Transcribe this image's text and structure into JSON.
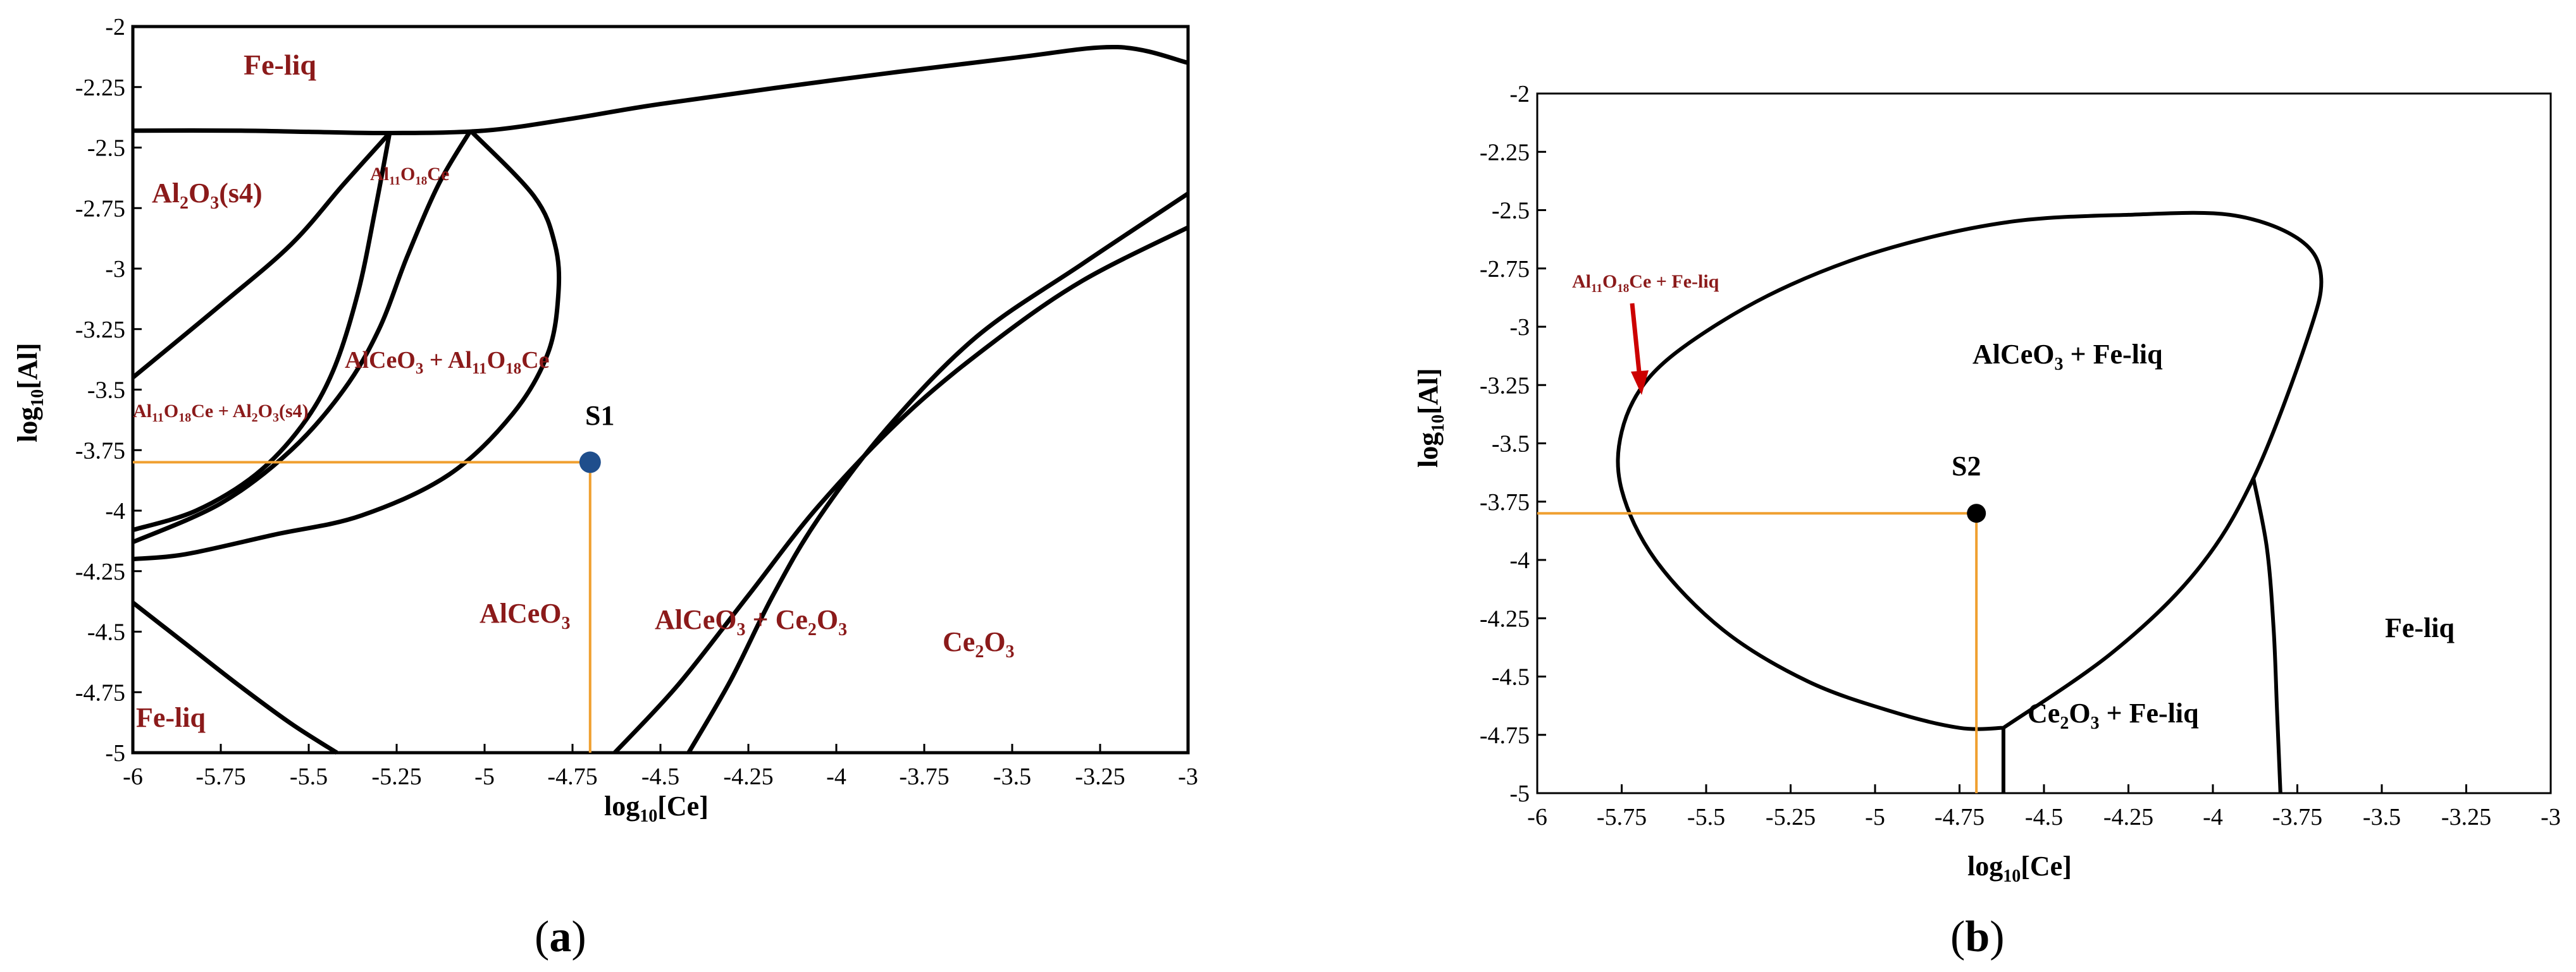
{
  "chart_data": [
    {
      "type": "line",
      "panel_label": "(a)",
      "xlabel": "log10[Ce]",
      "ylabel": "log10[Al]",
      "xlim": [
        -6,
        -3
      ],
      "ylim": [
        -5,
        -2
      ],
      "x_ticks": [
        "-6",
        "-5.75",
        "-5.5",
        "-5.25",
        "-5",
        "-4.75",
        "-4.5",
        "-4.25",
        "-4",
        "-3.75",
        "-3.5",
        "-3.25",
        "-3"
      ],
      "y_ticks": [
        "-2",
        "-2.25",
        "-2.5",
        "-2.75",
        "-3",
        "-3.25",
        "-3.5",
        "-3.75",
        "-4",
        "-4.25",
        "-4.5",
        "-4.75",
        "-5"
      ],
      "regions": [
        "Fe-liq",
        "Al2O3(s4)",
        "Al11O18Ce",
        "AlCeO3 + Al11O18Ce",
        "Al11O18Ce + Al2O3(s4)",
        "AlCeO3",
        "AlCeO3 + Ce2O3",
        "Ce2O3",
        "Fe-liq"
      ],
      "point": {
        "label": "S1",
        "x": -4.7,
        "y": -3.8,
        "color": "#1f4e8c"
      },
      "guide_color": "#f0a030",
      "boundaries": [
        {
          "x": [
            -6,
            -5.7,
            -5.5,
            -5.27,
            -5.0,
            -4.75,
            -4.5,
            -4.0,
            -3.5,
            -3.2,
            -3.0
          ],
          "y": [
            -2.43,
            -2.43,
            -2.435,
            -2.44,
            -2.43,
            -2.38,
            -2.32,
            -2.22,
            -2.13,
            -2.085,
            -2.15
          ]
        },
        {
          "x": [
            -5.27,
            -5.4,
            -5.55,
            -5.75,
            -6.0
          ],
          "y": [
            -2.44,
            -2.65,
            -2.9,
            -3.15,
            -3.45
          ]
        },
        {
          "x": [
            -5.27,
            -5.31,
            -5.36,
            -5.43,
            -5.52,
            -5.65,
            -5.82,
            -6.0
          ],
          "y": [
            -2.44,
            -2.75,
            -3.1,
            -3.42,
            -3.65,
            -3.85,
            -4.0,
            -4.08
          ]
        },
        {
          "x": [
            -5.04,
            -5.13,
            -5.22,
            -5.3,
            -5.4,
            -5.55,
            -5.75,
            -6.0
          ],
          "y": [
            -2.43,
            -2.65,
            -2.95,
            -3.25,
            -3.5,
            -3.75,
            -3.97,
            -4.13
          ]
        },
        {
          "x": [
            -5.04,
            -4.86,
            -4.8,
            -4.79,
            -4.82,
            -4.92,
            -5.1,
            -5.35,
            -5.6,
            -5.85,
            -6.0
          ],
          "y": [
            -2.43,
            -2.7,
            -2.9,
            -3.1,
            -3.35,
            -3.6,
            -3.85,
            -4.02,
            -4.1,
            -4.18,
            -4.2
          ]
        },
        {
          "x": [
            -6.0,
            -5.85,
            -5.7,
            -5.55,
            -5.42
          ],
          "y": [
            -4.38,
            -4.55,
            -4.72,
            -4.88,
            -5.0
          ]
        },
        {
          "x": [
            -4.63,
            -4.45,
            -4.25,
            -4.05,
            -3.8,
            -3.55,
            -3.3,
            -3.0
          ],
          "y": [
            -5.0,
            -4.72,
            -4.35,
            -3.98,
            -3.6,
            -3.3,
            -3.05,
            -2.83
          ]
        },
        {
          "x": [
            -4.42,
            -4.3,
            -4.18,
            -4.05,
            -3.85,
            -3.6,
            -3.3,
            -3.0
          ],
          "y": [
            -5.0,
            -4.7,
            -4.35,
            -4.03,
            -3.65,
            -3.28,
            -2.98,
            -2.69
          ]
        }
      ]
    },
    {
      "type": "line",
      "panel_label": "(b)",
      "xlabel": "log10[Ce]",
      "ylabel": "log10[Al]",
      "xlim": [
        -6,
        -3
      ],
      "ylim": [
        -5,
        -2
      ],
      "x_ticks": [
        "-6",
        "-5.75",
        "-5.5",
        "-5.25",
        "-5",
        "-4.75",
        "-4.5",
        "-4.25",
        "-4",
        "-3.75",
        "-3.5",
        "-3.25",
        "-3"
      ],
      "y_ticks": [
        "-2",
        "-2.25",
        "-2.5",
        "-2.75",
        "-3",
        "-3.25",
        "-3.5",
        "-3.75",
        "-4",
        "-4.25",
        "-4.5",
        "-4.75",
        "-5"
      ],
      "regions": [
        "Al11O18Ce + Fe-liq",
        "AlCeO3 + Fe-liq",
        "Fe-liq",
        "Ce2O3 + Fe-liq"
      ],
      "point": {
        "label": "S2",
        "x": -4.7,
        "y": -3.8,
        "color": "#000000"
      },
      "guide_color": "#f0a030",
      "annotation_arrow_color": "#cc0000",
      "boundaries": [
        {
          "x": [
            -4.62,
            -4.75,
            -4.95,
            -5.2,
            -5.45,
            -5.65,
            -5.75,
            -5.75,
            -5.67,
            -5.5,
            -5.25,
            -4.95,
            -4.6,
            -4.25,
            -3.95,
            -3.75,
            -3.68,
            -3.72,
            -3.88,
            -4.05,
            -4.3,
            -4.62
          ],
          "y": [
            -4.72,
            -4.72,
            -4.65,
            -4.52,
            -4.3,
            -4.0,
            -3.7,
            -3.45,
            -3.22,
            -3.02,
            -2.82,
            -2.66,
            -2.55,
            -2.52,
            -2.52,
            -2.62,
            -2.78,
            -3.05,
            -3.65,
            -4.05,
            -4.4,
            -4.72
          ]
        },
        {
          "x": [
            -3.88,
            -3.84,
            -3.82,
            -3.81,
            -3.8
          ],
          "y": [
            -3.65,
            -3.95,
            -4.3,
            -4.65,
            -5.0
          ]
        },
        {
          "x": [
            -4.62,
            -4.62
          ],
          "y": [
            -4.72,
            -5.0
          ]
        }
      ]
    }
  ]
}
